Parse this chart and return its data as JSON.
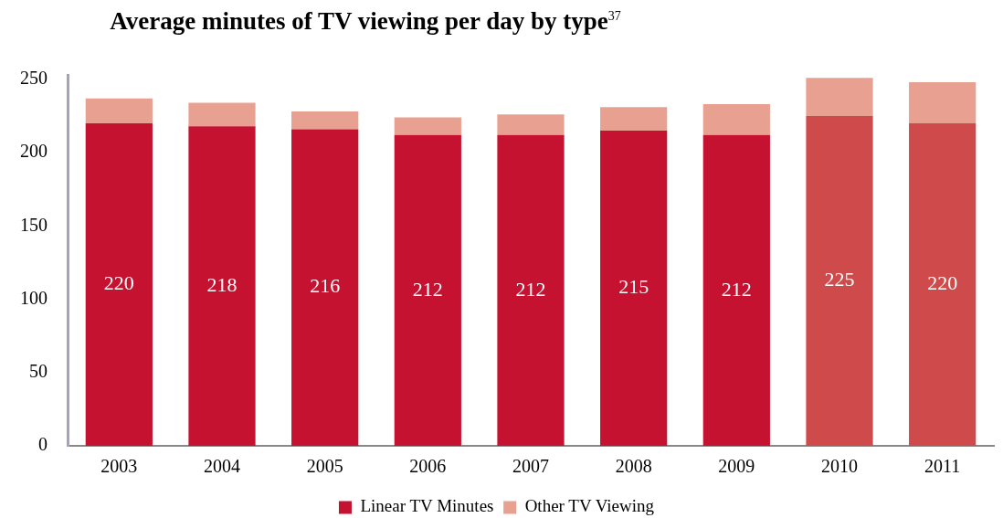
{
  "chart_data": {
    "type": "bar",
    "title": "Average minutes of TV viewing per day by type$^{37}$",
    "categories": [
      "2003",
      "2004",
      "2005",
      "2006",
      "2007",
      "2008",
      "2009",
      "2010",
      "2011"
    ],
    "stacked": true,
    "series": [
      {
        "name": "Linear TV Minutes",
        "color": "#c41230",
        "colors": [
          "#c41230",
          "#c41230",
          "#c41230",
          "#c41230",
          "#c41230",
          "#c41230",
          "#c41230",
          "#cf4a4a",
          "#cf4a4a"
        ],
        "values": [
          220,
          218,
          216,
          212,
          212,
          215,
          212,
          225,
          220
        ],
        "value_labels": [
          "220",
          "218",
          "216",
          "212",
          "212",
          "215",
          "212",
          "225",
          "220"
        ]
      },
      {
        "name": "Other TV Viewing",
        "color": "#e8a090",
        "values": [
          17,
          16,
          12,
          12,
          14,
          16,
          21,
          26,
          28
        ]
      }
    ],
    "ylim": [
      0,
      253
    ],
    "yticks": [
      0,
      50,
      100,
      150,
      200,
      250
    ],
    "grid": false,
    "legend": "bottom"
  }
}
